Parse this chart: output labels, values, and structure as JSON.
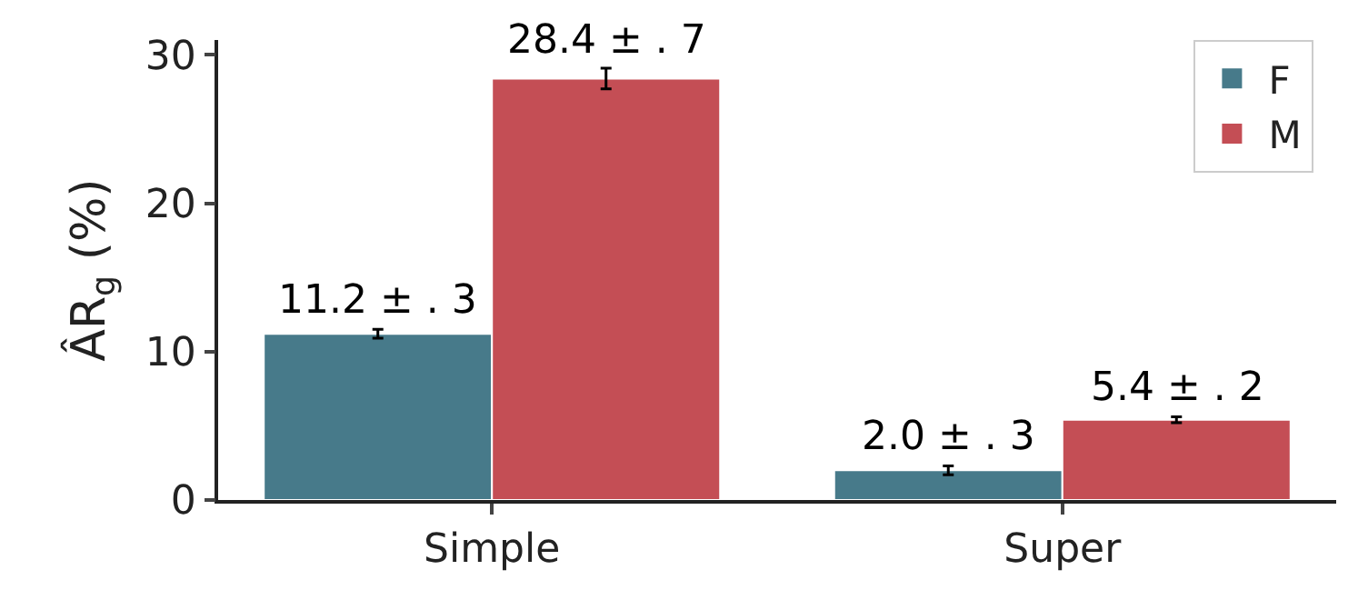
{
  "chart_data": {
    "type": "bar",
    "ylabel": "ÂR$_{g}$ (%)",
    "categories": [
      "Simple",
      "Super"
    ],
    "series": [
      {
        "name": "F",
        "color": "#477a8a",
        "values": [
          11.2,
          2.0
        ],
        "errors": [
          0.3,
          0.3
        ],
        "value_labels": [
          "11.2 ± . 3",
          "2.0 ± . 3"
        ]
      },
      {
        "name": "M",
        "color": "#c44e55",
        "values": [
          28.4,
          5.4
        ],
        "errors": [
          0.7,
          0.2
        ],
        "value_labels": [
          "28.4 ± . 7",
          "5.4 ± . 2"
        ]
      }
    ],
    "ylim": [
      0,
      31
    ],
    "yticks": [
      0,
      10,
      20,
      30
    ],
    "grid": false,
    "legend": "top right"
  }
}
